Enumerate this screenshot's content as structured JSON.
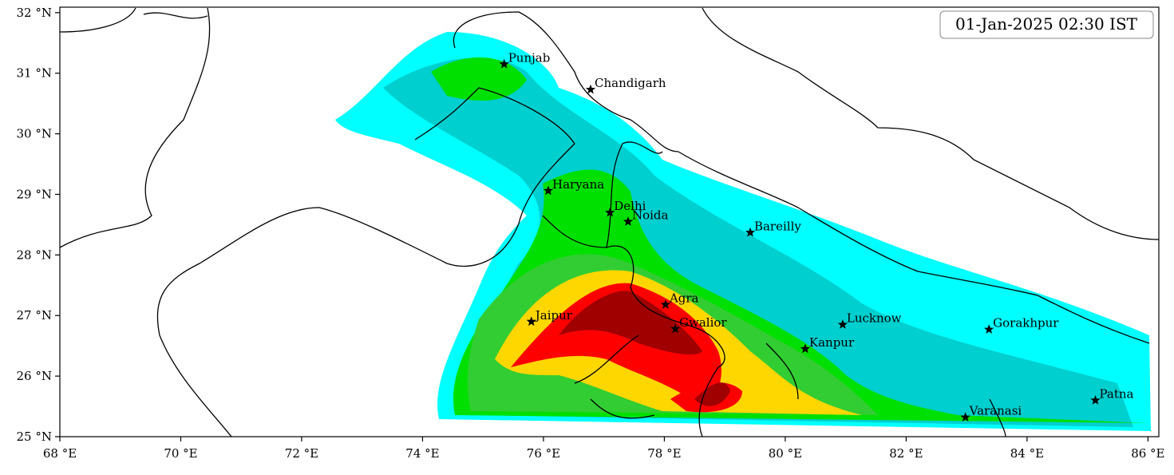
{
  "map": {
    "timestamp": "01-Jan-2025 02:30 IST",
    "xlim": [
      68,
      86.18
    ],
    "ylim": [
      25,
      32.09
    ],
    "xticks": [
      {
        "value": 68,
        "label": "68 °E"
      },
      {
        "value": 70,
        "label": "70 °E"
      },
      {
        "value": 72,
        "label": "72 °E"
      },
      {
        "value": 74,
        "label": "74 °E"
      },
      {
        "value": 76,
        "label": "76 °E"
      },
      {
        "value": 78,
        "label": "78 °E"
      },
      {
        "value": 80,
        "label": "80 °E"
      },
      {
        "value": 82,
        "label": "82 °E"
      },
      {
        "value": 84,
        "label": "84 °E"
      },
      {
        "value": 86,
        "label": "86 °E"
      }
    ],
    "yticks": [
      {
        "value": 25,
        "label": "25 °N"
      },
      {
        "value": 26,
        "label": "26 °N"
      },
      {
        "value": 27,
        "label": "27 °N"
      },
      {
        "value": 28,
        "label": "28 °N"
      },
      {
        "value": 29,
        "label": "29 °N"
      },
      {
        "value": 30,
        "label": "30 °N"
      },
      {
        "value": 31,
        "label": "31 °N"
      },
      {
        "value": 32,
        "label": "32 °N"
      }
    ],
    "cities": [
      "Punjab",
      "Chandigarh",
      "Haryana",
      "Delhi",
      "Noida",
      "Bareilly",
      "Agra",
      "Jaipur",
      "Gwalior",
      "Lucknow",
      "Kanpur",
      "Gorakhpur",
      "Varanasi",
      "Patna"
    ]
  }
}
